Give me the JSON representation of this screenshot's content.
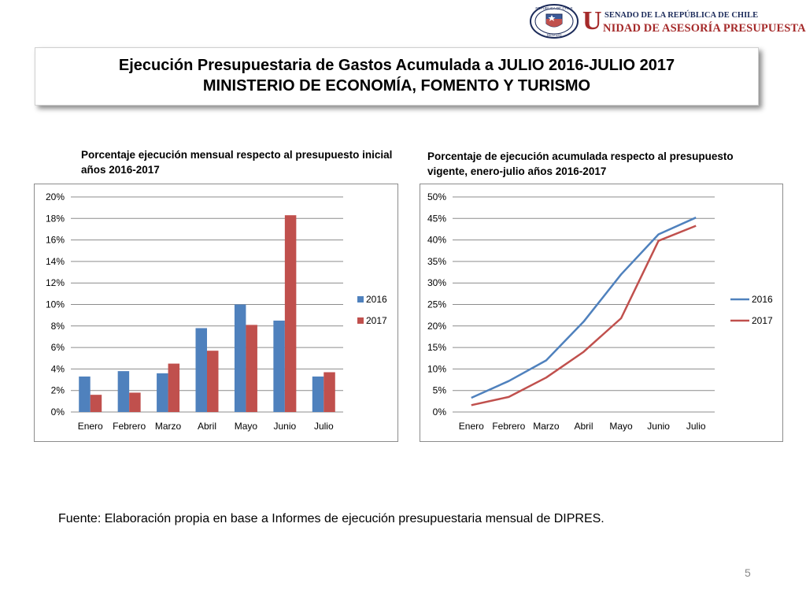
{
  "header": {
    "logo_line1": "SENADO DE LA REPÚBLICA DE CHILE",
    "logo_initial": "U",
    "logo_line2": "NIDAD DE ASESORÍA PRESUPUESTARIA",
    "seal_text_top": "REPÚBLICA DE CHILE",
    "seal_text_bottom": "SENADO"
  },
  "slide": {
    "title_line1": "Ejecución Presupuestaria de Gastos Acumulada a JULIO 2016-JULIO 2017",
    "title_line2": "MINISTERIO DE ECONOMÍA, FOMENTO Y TURISMO",
    "source": "Fuente: Elaboración propia en base  a Informes de ejecución presupuestaria mensual de DIPRES.",
    "page_number": "5"
  },
  "colors": {
    "series_2016": "#4f81bd",
    "series_2017": "#c0504d",
    "grid": "#8c8c8c"
  },
  "chart_data": [
    {
      "type": "bar",
      "title_line1": "Porcentaje ejecución mensual respecto al presupuesto inicial",
      "title_line2": "años 2016-2017",
      "categories": [
        "Enero",
        "Febrero",
        "Marzo",
        "Abril",
        "Mayo",
        "Junio",
        "Julio"
      ],
      "series": [
        {
          "name": "2016",
          "values": [
            3.3,
            3.8,
            3.6,
            7.8,
            10.0,
            8.5,
            3.3
          ]
        },
        {
          "name": "2017",
          "values": [
            1.6,
            1.8,
            4.5,
            5.7,
            8.1,
            18.3,
            3.7
          ]
        }
      ],
      "ylim": [
        0,
        20
      ],
      "yticks": [
        "0%",
        "2%",
        "4%",
        "6%",
        "8%",
        "10%",
        "12%",
        "14%",
        "16%",
        "18%",
        "20%"
      ],
      "grid": true,
      "legend": "right"
    },
    {
      "type": "line",
      "title_line1": "Porcentaje de ejecución acumulada  respecto al presupuesto",
      "title_line2": "vigente, enero-julio años 2016-2017",
      "categories": [
        "Enero",
        "Febrero",
        "Marzo",
        "Abril",
        "Mayo",
        "Junio",
        "Julio"
      ],
      "series": [
        {
          "name": "2016",
          "values": [
            3.3,
            7.2,
            12.0,
            21.0,
            32.0,
            41.3,
            45.2
          ]
        },
        {
          "name": "2017",
          "values": [
            1.6,
            3.5,
            8.0,
            14.0,
            21.8,
            39.8,
            43.3
          ]
        }
      ],
      "ylim": [
        0,
        50
      ],
      "yticks": [
        "0%",
        "5%",
        "10%",
        "15%",
        "20%",
        "25%",
        "30%",
        "35%",
        "40%",
        "45%",
        "50%"
      ],
      "grid": true,
      "legend": "right"
    }
  ]
}
